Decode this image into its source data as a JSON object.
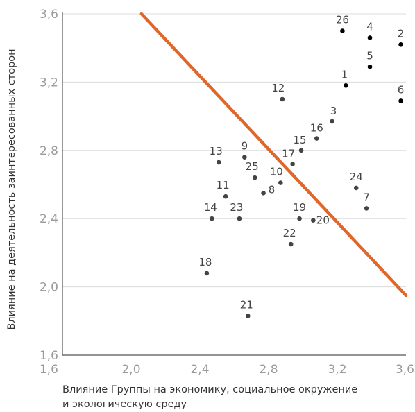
{
  "chart_data": {
    "type": "scatter",
    "xlabel_lines": [
      "Влияние Группы на экономику, социальное окружение",
      "и экологическую среду"
    ],
    "ylabel": "Влияние на деятельность заинтересованных сторон",
    "xlim": [
      1.6,
      3.6
    ],
    "ylim": [
      1.6,
      3.6
    ],
    "x_ticks": [
      1.6,
      2.0,
      2.4,
      2.8,
      3.2,
      3.6
    ],
    "y_ticks": [
      1.6,
      2.0,
      2.4,
      2.8,
      3.2,
      3.6
    ],
    "x_tick_labels": [
      "1,6",
      "2,0",
      "2,4",
      "2,8",
      "3,2",
      "3,6"
    ],
    "y_tick_labels": [
      "1,6",
      "2,0",
      "2,4",
      "2,8",
      "3,2",
      "3,6"
    ],
    "grid": "horizontal",
    "points": [
      {
        "label": "1",
        "x": 3.25,
        "y": 3.18,
        "color": "#000000"
      },
      {
        "label": "2",
        "x": 3.57,
        "y": 3.42,
        "color": "#000000"
      },
      {
        "label": "3",
        "x": 3.17,
        "y": 2.97,
        "color": "#444444"
      },
      {
        "label": "4",
        "x": 3.39,
        "y": 3.46,
        "color": "#000000"
      },
      {
        "label": "5",
        "x": 3.39,
        "y": 3.29,
        "color": "#000000"
      },
      {
        "label": "6",
        "x": 3.57,
        "y": 3.09,
        "color": "#000000"
      },
      {
        "label": "7",
        "x": 3.37,
        "y": 2.46,
        "color": "#444444"
      },
      {
        "label": "8",
        "x": 2.77,
        "y": 2.55,
        "color": "#444444"
      },
      {
        "label": "9",
        "x": 2.66,
        "y": 2.76,
        "color": "#444444"
      },
      {
        "label": "10",
        "x": 2.87,
        "y": 2.61,
        "color": "#444444"
      },
      {
        "label": "11",
        "x": 2.55,
        "y": 2.53,
        "color": "#444444"
      },
      {
        "label": "12",
        "x": 2.88,
        "y": 3.1,
        "color": "#444444"
      },
      {
        "label": "13",
        "x": 2.51,
        "y": 2.73,
        "color": "#444444"
      },
      {
        "label": "14",
        "x": 2.47,
        "y": 2.4,
        "color": "#444444"
      },
      {
        "label": "15",
        "x": 2.99,
        "y": 2.8,
        "color": "#444444"
      },
      {
        "label": "16",
        "x": 3.08,
        "y": 2.87,
        "color": "#444444"
      },
      {
        "label": "17",
        "x": 2.94,
        "y": 2.72,
        "color": "#444444"
      },
      {
        "label": "18",
        "x": 2.44,
        "y": 2.08,
        "color": "#444444"
      },
      {
        "label": "19",
        "x": 2.98,
        "y": 2.4,
        "color": "#444444"
      },
      {
        "label": "20",
        "x": 3.06,
        "y": 2.39,
        "color": "#444444"
      },
      {
        "label": "21",
        "x": 2.68,
        "y": 1.83,
        "color": "#444444"
      },
      {
        "label": "22",
        "x": 2.93,
        "y": 2.25,
        "color": "#444444"
      },
      {
        "label": "23",
        "x": 2.63,
        "y": 2.4,
        "color": "#444444"
      },
      {
        "label": "24",
        "x": 3.31,
        "y": 2.58,
        "color": "#444444"
      },
      {
        "label": "25",
        "x": 2.72,
        "y": 2.64,
        "color": "#444444"
      },
      {
        "label": "26",
        "x": 3.23,
        "y": 3.5,
        "color": "#000000"
      }
    ],
    "threshold_line": {
      "x": [
        2.06,
        3.6
      ],
      "y": [
        3.6,
        1.95
      ],
      "color": "#e0662a"
    },
    "grid_color": "#dcdcdc",
    "axis_color": "#555555"
  }
}
